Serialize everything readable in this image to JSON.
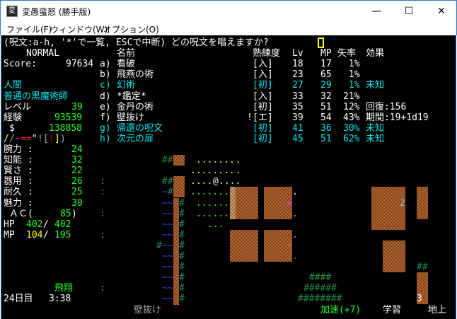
{
  "window": {
    "title": "変愚蛮怒 (勝手版)",
    "icon": "app-icon",
    "minimize": "—",
    "maximize": "☐",
    "close": "✕"
  },
  "menu": [
    "ファイル(F)",
    "ウィンドウ(W)",
    "オプション(O)"
  ],
  "prompt": "(呪文:a-h, '*'で一覧, ESCで中断) どの呪文を唱えますか?",
  "header": {
    "name": "名前",
    "skill": "熟練度",
    "lv": "Lv",
    "mp": "MP",
    "fail": "失率",
    "effect": "効果"
  },
  "spells": [
    {
      "key": "a)",
      "name": "看破",
      "skill": "[入]",
      "lv": "18",
      "mp": "17",
      "fail": "1%",
      "effect": "",
      "color": "w",
      "mark": ""
    },
    {
      "key": "b)",
      "name": "飛燕の術",
      "skill": "[入]",
      "lv": "23",
      "mp": "65",
      "fail": "1%",
      "effect": "",
      "color": "w",
      "mark": ""
    },
    {
      "key": "c)",
      "name": "幻術",
      "skill": "[初]",
      "lv": "27",
      "mp": "29",
      "fail": "1%",
      "effect": "未知",
      "color": "c",
      "mark": ""
    },
    {
      "key": "d)",
      "name": "*鑑定*",
      "skill": "[入]",
      "lv": "33",
      "mp": "32",
      "fail": "21%",
      "effect": "",
      "color": "w",
      "mark": ""
    },
    {
      "key": "e)",
      "name": "金丹の術",
      "skill": "[初]",
      "lv": "35",
      "mp": "51",
      "fail": "12%",
      "effect": "回復:156",
      "color": "w",
      "mark": ""
    },
    {
      "key": "f)",
      "name": "壁抜け",
      "skill": "[エ]",
      "lv": "39",
      "mp": "54",
      "fail": "43%",
      "effect": "期間:19+1d19",
      "color": "w",
      "mark": "!"
    },
    {
      "key": "g)",
      "name": "帰還の呪文",
      "skill": "[初]",
      "lv": "41",
      "mp": "36",
      "fail": "30%",
      "effect": "未知",
      "color": "c",
      "mark": ""
    },
    {
      "key": "h)",
      "name": "次元の扉",
      "skill": "[初]",
      "lv": "45",
      "mp": "51",
      "fail": "62%",
      "effect": "未知",
      "color": "c",
      "mark": ""
    }
  ],
  "character": {
    "mode": "NORMAL",
    "score_label": "Score:",
    "score": "97634",
    "race": "人間",
    "class": "普通の黒魔術師",
    "level_label": "レベル",
    "level": "39",
    "exp_label": "経験",
    "exp": "93539",
    "gold_label": "$",
    "gold": "138858",
    "equipment": [
      {
        "ch": "/",
        "color": "y"
      },
      {
        "ch": "/",
        "color": "gr"
      },
      {
        "ch": "~",
        "color": "m"
      },
      {
        "ch": "=",
        "color": "r"
      },
      {
        "ch": "=",
        "color": "r"
      },
      {
        "ch": "\"",
        "color": "w"
      },
      {
        "ch": "!",
        "color": "gr"
      },
      {
        "ch": "[",
        "color": "gr"
      },
      {
        "ch": "(",
        "color": "dr"
      },
      {
        "ch": "]",
        "color": "y"
      },
      {
        "ch": ")",
        "color": "gr"
      }
    ],
    "stats": [
      {
        "label": "腕力 :",
        "value": "24"
      },
      {
        "label": "知能 :",
        "value": "32"
      },
      {
        "label": "賢さ :",
        "value": "22"
      },
      {
        "label": "器用 :",
        "value": "26"
      },
      {
        "label": "耐久 :",
        "value": "25"
      },
      {
        "label": "魅力 :",
        "value": "30"
      }
    ],
    "ac_label": "ＡＣ(",
    "ac": "85",
    "ac_close": ")",
    "hp_label": "HP",
    "hp": "402",
    "hp_max": "402",
    "mp_label": "MP",
    "mp": "104",
    "mp_max": "195",
    "levitation": "飛翔",
    "date": "24日目",
    "time": "3:38"
  },
  "status": {
    "spell": "壁抜け",
    "haste": "加速(+7)",
    "study": "学習",
    "location": "地上"
  },
  "map": {
    "player": "@",
    "monster_2": "2",
    "monster_3": "3"
  },
  "colors": {
    "wall": "#c8743a",
    "player": "#ffffff",
    "floor_lit": "#ffff00",
    "floor": "#22ff22",
    "tree": "#1f8a4a",
    "water": "#2a4cff",
    "cyan": "#00e8f0"
  }
}
